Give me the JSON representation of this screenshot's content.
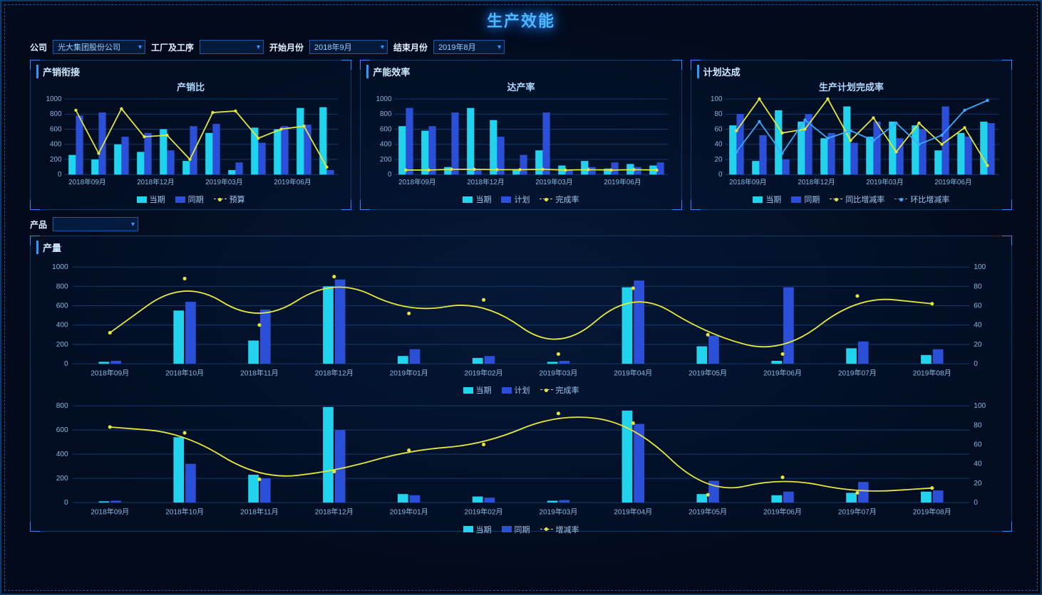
{
  "title": "生产效能",
  "filters": {
    "company_label": "公司",
    "company_value": "光大集团股份公司",
    "factory_label": "工厂及工序",
    "factory_value": "",
    "start_label": "开始月份",
    "start_value": "2018年9月",
    "end_label": "结束月份",
    "end_value": "2019年8月",
    "product_label": "产品",
    "product_value": ""
  },
  "colors": {
    "bar_current": "#22d3ee",
    "bar_compare": "#2b4fd6",
    "line_yellow": "#e6e63a",
    "line_blue": "#3aaaff",
    "axis_text": "#8ab8e0",
    "grid": "#123a6a"
  },
  "months12": [
    "2018年09月",
    "2018年10月",
    "2018年11月",
    "2018年12月",
    "2019年01月",
    "2019年02月",
    "2019年03月",
    "2019年04月",
    "2019年05月",
    "2019年06月",
    "2019年07月",
    "2019年08月"
  ],
  "x_ticks_4": [
    "2018年09月",
    "2018年12月",
    "2019年03月",
    "2019年06月"
  ],
  "panel1": {
    "title": "产销衔接",
    "chart_title": "产销比",
    "y_ticks": [
      0,
      200,
      400,
      600,
      800,
      1000
    ],
    "ymax": 1000,
    "series_bar1": [
      260,
      200,
      400,
      300,
      600,
      180,
      550,
      60,
      620,
      600,
      880,
      890
    ],
    "series_bar2": [
      780,
      820,
      500,
      550,
      320,
      640,
      670,
      160,
      420,
      640,
      660,
      60
    ],
    "series_line": [
      850,
      280,
      870,
      500,
      520,
      200,
      820,
      840,
      480,
      600,
      640,
      100
    ],
    "legend": [
      "当期",
      "同期",
      "预算"
    ]
  },
  "panel2": {
    "title": "产能效率",
    "chart_title": "达产率",
    "y_ticks": [
      0,
      200,
      400,
      600,
      800,
      1000
    ],
    "ymax": 1000,
    "series_bar1": [
      640,
      580,
      100,
      880,
      720,
      60,
      320,
      120,
      180,
      80,
      140,
      120
    ],
    "series_bar2": [
      880,
      640,
      820,
      60,
      500,
      260,
      820,
      60,
      100,
      160,
      100,
      160
    ],
    "series_line": [
      60,
      60,
      70,
      70,
      65,
      65,
      70,
      60,
      65,
      60,
      65,
      60
    ],
    "legend": [
      "当期",
      "计划",
      "完成率"
    ]
  },
  "panel3": {
    "title": "计划达成",
    "chart_title": "生产计划完成率",
    "y_ticks": [
      0,
      20,
      40,
      60,
      80,
      100
    ],
    "ymax": 100,
    "series_bar1": [
      65,
      18,
      85,
      70,
      48,
      90,
      50,
      70,
      65,
      32,
      55,
      70
    ],
    "series_bar2": [
      80,
      52,
      20,
      80,
      55,
      42,
      70,
      48,
      60,
      90,
      50,
      68
    ],
    "series_line_y": [
      58,
      100,
      55,
      60,
      100,
      45,
      75,
      30,
      68,
      40,
      62,
      12
    ],
    "series_line_b": [
      30,
      70,
      28,
      72,
      48,
      58,
      45,
      68,
      40,
      52,
      85,
      98
    ],
    "legend": [
      "当期",
      "同期",
      "同比增减率",
      "环比增减率"
    ]
  },
  "big_panel": {
    "title": "产量",
    "chartA": {
      "y_left_ticks": [
        0,
        200,
        400,
        600,
        800,
        1000
      ],
      "y_left_max": 1000,
      "y_right_ticks": [
        0,
        20,
        40,
        60,
        80,
        100
      ],
      "y_right_max": 100,
      "bar1": [
        20,
        550,
        240,
        800,
        80,
        60,
        20,
        790,
        180,
        30,
        160,
        90
      ],
      "bar2": [
        30,
        640,
        560,
        870,
        150,
        80,
        30,
        860,
        290,
        790,
        230,
        150
      ],
      "line": [
        32,
        88,
        40,
        90,
        52,
        66,
        10,
        78,
        30,
        10,
        70,
        62
      ],
      "legend": [
        "当期",
        "计划",
        "完成率"
      ]
    },
    "chartB": {
      "y_left_ticks": [
        0,
        200,
        400,
        600,
        800
      ],
      "y_left_max": 800,
      "y_right_ticks": [
        0,
        20,
        40,
        60,
        80,
        100
      ],
      "y_right_max": 100,
      "bar1": [
        10,
        540,
        230,
        790,
        70,
        50,
        15,
        760,
        70,
        60,
        80,
        90
      ],
      "bar2": [
        15,
        320,
        200,
        600,
        60,
        40,
        20,
        650,
        180,
        90,
        170,
        100
      ],
      "line": [
        78,
        72,
        24,
        32,
        54,
        60,
        92,
        82,
        8,
        26,
        10,
        15
      ],
      "legend": [
        "当期",
        "同期",
        "增减率"
      ]
    }
  }
}
